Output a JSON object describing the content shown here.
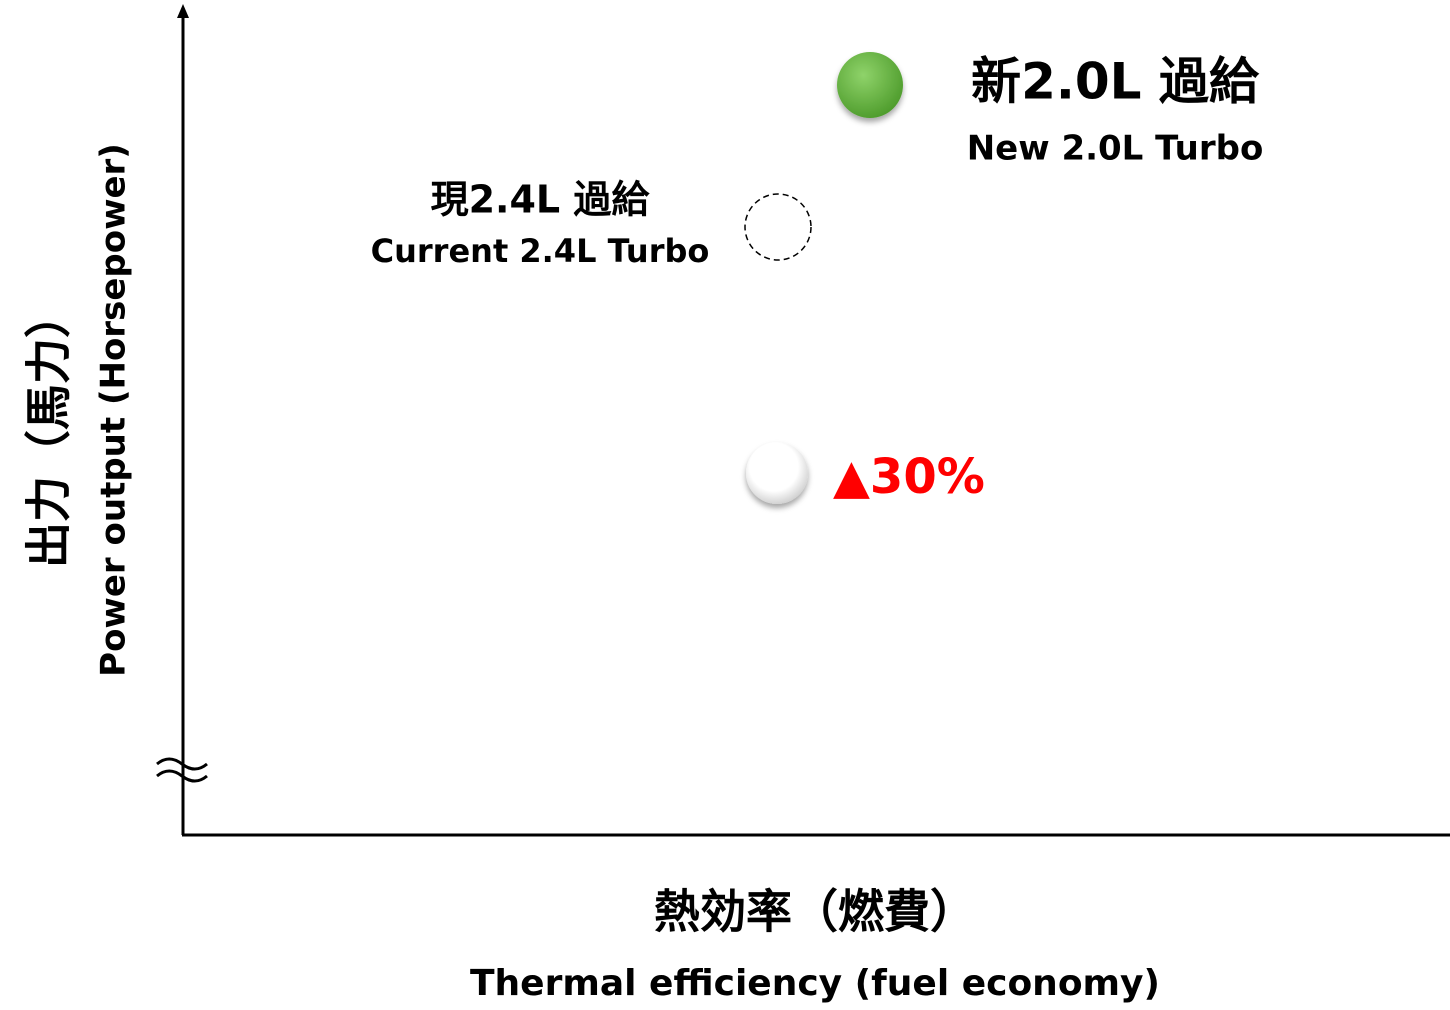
{
  "axes": {
    "y_label": {
      "ja": "出力（馬力）",
      "en": "Power output (Horsepower)"
    },
    "x_label": {
      "ja": "熱効率（燃費）",
      "en": "Thermal efficiency (fuel economy)"
    }
  },
  "points": [
    {
      "label_ja": "新2.0L 過給",
      "label_en": "New 2.0L Turbo"
    },
    {
      "label_ja": "現2.4L 過給",
      "label_en": "Current 2.4L Turbo"
    }
  ],
  "annotation": "▲30%"
}
